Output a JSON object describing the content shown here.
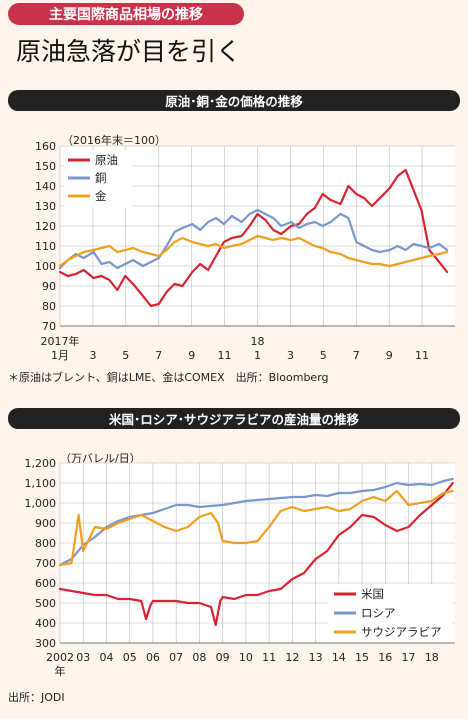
{
  "header": {
    "kicker": "主要国際商品相場の推移",
    "title": "原油急落が目を引く"
  },
  "colors": {
    "oil": "#d62430",
    "copper": "#7b96cc",
    "gold": "#f0a020",
    "banner": "#222222",
    "kicker_bg": "#c8324a"
  },
  "chart_data": [
    {
      "type": "line",
      "title": "原油･銅･金の価格の推移",
      "unit_note": "（2016年末＝100）",
      "ylim": [
        70,
        160
      ],
      "yticks": [
        70,
        80,
        90,
        100,
        110,
        120,
        130,
        140,
        150,
        160
      ],
      "xlim": [
        2017.0,
        2019.0
      ],
      "xticks": [
        {
          "x": 2017.0,
          "label": "1月"
        },
        {
          "x": 2017.167,
          "label": "3"
        },
        {
          "x": 2017.333,
          "label": "5"
        },
        {
          "x": 2017.5,
          "label": "7"
        },
        {
          "x": 2017.667,
          "label": "9"
        },
        {
          "x": 2017.833,
          "label": "11"
        },
        {
          "x": 2018.0,
          "label": "1"
        },
        {
          "x": 2018.167,
          "label": "3"
        },
        {
          "x": 2018.333,
          "label": "5"
        },
        {
          "x": 2018.5,
          "label": "7"
        },
        {
          "x": 2018.667,
          "label": "9"
        },
        {
          "x": 2018.833,
          "label": "11"
        }
      ],
      "year_labels": [
        {
          "x": 2017.0,
          "label": "2017年"
        },
        {
          "x": 2018.0,
          "label": "18"
        }
      ],
      "note": "＊原油はブレント、銅はLME、金はCOMEX　出所：Bloomberg",
      "grid": true,
      "legend_position": "top-left",
      "series": [
        {
          "name": "原油",
          "color": "#d62430",
          "x": [
            2017.0,
            2017.04,
            2017.08,
            2017.12,
            2017.17,
            2017.21,
            2017.25,
            2017.29,
            2017.33,
            2017.37,
            2017.42,
            2017.46,
            2017.5,
            2017.54,
            2017.58,
            2017.62,
            2017.67,
            2017.71,
            2017.75,
            2017.79,
            2017.83,
            2017.87,
            2017.92,
            2017.96,
            2018.0,
            2018.04,
            2018.08,
            2018.12,
            2018.17,
            2018.21,
            2018.25,
            2018.29,
            2018.33,
            2018.37,
            2018.42,
            2018.46,
            2018.5,
            2018.54,
            2018.58,
            2018.62,
            2018.67,
            2018.71,
            2018.75,
            2018.79,
            2018.83,
            2018.87,
            2018.92,
            2018.96
          ],
          "y": [
            97,
            95,
            96,
            98,
            94,
            95,
            93,
            88,
            95,
            91,
            85,
            80,
            81,
            87,
            91,
            90,
            97,
            101,
            98,
            105,
            112,
            114,
            115,
            120,
            126,
            123,
            118,
            116,
            120,
            121,
            126,
            129,
            136,
            133,
            131,
            140,
            136,
            134,
            130,
            134,
            139,
            145,
            148,
            138,
            128,
            108,
            102,
            97
          ]
        },
        {
          "name": "銅",
          "color": "#7b96cc",
          "x": [
            2017.0,
            2017.04,
            2017.08,
            2017.12,
            2017.17,
            2017.21,
            2017.25,
            2017.29,
            2017.33,
            2017.37,
            2017.42,
            2017.46,
            2017.5,
            2017.54,
            2017.58,
            2017.62,
            2017.67,
            2017.71,
            2017.75,
            2017.79,
            2017.83,
            2017.87,
            2017.92,
            2017.96,
            2018.0,
            2018.04,
            2018.08,
            2018.12,
            2018.17,
            2018.21,
            2018.25,
            2018.29,
            2018.33,
            2018.37,
            2018.42,
            2018.46,
            2018.5,
            2018.54,
            2018.58,
            2018.62,
            2018.67,
            2018.71,
            2018.75,
            2018.79,
            2018.83,
            2018.87,
            2018.92,
            2018.96
          ],
          "y": [
            99,
            103,
            106,
            104,
            107,
            101,
            102,
            99,
            101,
            103,
            100,
            102,
            104,
            110,
            117,
            119,
            121,
            118,
            122,
            124,
            121,
            125,
            122,
            126,
            128,
            126,
            124,
            120,
            122,
            119,
            121,
            122,
            120,
            122,
            126,
            124,
            112,
            110,
            108,
            107,
            108,
            110,
            108,
            111,
            110,
            109,
            111,
            108
          ]
        },
        {
          "name": "金",
          "color": "#f0a020",
          "x": [
            2017.0,
            2017.04,
            2017.08,
            2017.12,
            2017.17,
            2017.21,
            2017.25,
            2017.29,
            2017.33,
            2017.37,
            2017.42,
            2017.46,
            2017.5,
            2017.54,
            2017.58,
            2017.62,
            2017.67,
            2017.71,
            2017.75,
            2017.79,
            2017.83,
            2017.87,
            2017.92,
            2017.96,
            2018.0,
            2018.04,
            2018.08,
            2018.12,
            2018.17,
            2018.21,
            2018.25,
            2018.29,
            2018.33,
            2018.37,
            2018.42,
            2018.46,
            2018.5,
            2018.54,
            2018.58,
            2018.62,
            2018.67,
            2018.71,
            2018.75,
            2018.79,
            2018.83,
            2018.87,
            2018.92,
            2018.96
          ],
          "y": [
            100,
            103,
            105,
            107,
            108,
            109,
            110,
            107,
            108,
            109,
            107,
            106,
            105,
            108,
            112,
            114,
            112,
            111,
            110,
            111,
            109,
            110,
            111,
            113,
            115,
            114,
            113,
            114,
            113,
            114,
            112,
            110,
            109,
            107,
            106,
            104,
            103,
            102,
            101,
            101,
            100,
            101,
            102,
            103,
            104,
            105,
            106,
            107
          ]
        }
      ]
    },
    {
      "type": "line",
      "title": "米国･ロシア･サウジアラビアの産油量の推移",
      "unit_note": "（万バレル/日）",
      "ylim": [
        300,
        1200
      ],
      "yticks": [
        300,
        400,
        500,
        600,
        700,
        800,
        900,
        1000,
        1100,
        1200
      ],
      "ytick_labels": [
        "300",
        "400",
        "500",
        "600",
        "700",
        "800",
        "900",
        "1,000",
        "1,100",
        "1,200"
      ],
      "xlim": [
        2002,
        2019
      ],
      "xticks": [
        {
          "x": 2002,
          "label": "2002"
        },
        {
          "x": 2003,
          "label": "03"
        },
        {
          "x": 2004,
          "label": "04"
        },
        {
          "x": 2005,
          "label": "05"
        },
        {
          "x": 2006,
          "label": "06"
        },
        {
          "x": 2007,
          "label": "07"
        },
        {
          "x": 2008,
          "label": "08"
        },
        {
          "x": 2009,
          "label": "09"
        },
        {
          "x": 2010,
          "label": "10"
        },
        {
          "x": 2011,
          "label": "11"
        },
        {
          "x": 2012,
          "label": "12"
        },
        {
          "x": 2013,
          "label": "13"
        },
        {
          "x": 2014,
          "label": "14"
        },
        {
          "x": 2015,
          "label": "15"
        },
        {
          "x": 2016,
          "label": "16"
        },
        {
          "x": 2017,
          "label": "17"
        },
        {
          "x": 2018,
          "label": "18"
        }
      ],
      "year_unit": "年",
      "note": "出所：JODI",
      "grid": true,
      "legend_position": "bottom-right",
      "series": [
        {
          "name": "米国",
          "color": "#d62430",
          "x": [
            2002,
            2002.5,
            2003,
            2003.5,
            2004,
            2004.5,
            2005,
            2005.5,
            2005.7,
            2005.9,
            2006,
            2006.5,
            2007,
            2007.5,
            2008,
            2008.5,
            2008.7,
            2008.9,
            2009,
            2009.5,
            2010,
            2010.5,
            2011,
            2011.5,
            2012,
            2012.5,
            2013,
            2013.5,
            2014,
            2014.5,
            2015,
            2015.5,
            2016,
            2016.5,
            2017,
            2017.5,
            2018,
            2018.5,
            2018.9
          ],
          "y": [
            570,
            560,
            550,
            540,
            540,
            520,
            520,
            510,
            420,
            490,
            510,
            510,
            510,
            500,
            500,
            480,
            390,
            510,
            530,
            520,
            540,
            540,
            560,
            570,
            620,
            650,
            720,
            760,
            840,
            880,
            940,
            930,
            890,
            860,
            880,
            940,
            990,
            1040,
            1100
          ]
        },
        {
          "name": "ロシア",
          "color": "#7b96cc",
          "x": [
            2002,
            2002.5,
            2003,
            2003.5,
            2004,
            2004.5,
            2005,
            2005.5,
            2006,
            2006.5,
            2007,
            2007.5,
            2008,
            2008.5,
            2009,
            2009.5,
            2010,
            2010.5,
            2011,
            2011.5,
            2012,
            2012.5,
            2013,
            2013.5,
            2014,
            2014.5,
            2015,
            2015.5,
            2016,
            2016.5,
            2017,
            2017.5,
            2018,
            2018.5,
            2018.9
          ],
          "y": [
            690,
            720,
            790,
            830,
            880,
            910,
            930,
            940,
            950,
            970,
            990,
            990,
            980,
            985,
            990,
            1000,
            1010,
            1015,
            1020,
            1025,
            1030,
            1030,
            1040,
            1035,
            1050,
            1050,
            1060,
            1065,
            1080,
            1100,
            1090,
            1095,
            1090,
            1110,
            1120
          ]
        },
        {
          "name": "サウジアラビア",
          "color": "#f0a020",
          "x": [
            2002,
            2002.5,
            2002.8,
            2003,
            2003.5,
            2004,
            2004.5,
            2005,
            2005.5,
            2006,
            2006.5,
            2007,
            2007.5,
            2008,
            2008.5,
            2008.8,
            2009,
            2009.5,
            2010,
            2010.5,
            2011,
            2011.5,
            2012,
            2012.5,
            2013,
            2013.5,
            2014,
            2014.5,
            2015,
            2015.5,
            2016,
            2016.5,
            2017,
            2017.5,
            2018,
            2018.5,
            2018.9
          ],
          "y": [
            690,
            700,
            940,
            760,
            880,
            870,
            900,
            920,
            940,
            910,
            880,
            860,
            880,
            930,
            950,
            900,
            810,
            800,
            800,
            810,
            880,
            960,
            980,
            960,
            970,
            980,
            960,
            970,
            1010,
            1030,
            1010,
            1060,
            990,
            1000,
            1010,
            1050,
            1060
          ]
        }
      ]
    }
  ]
}
